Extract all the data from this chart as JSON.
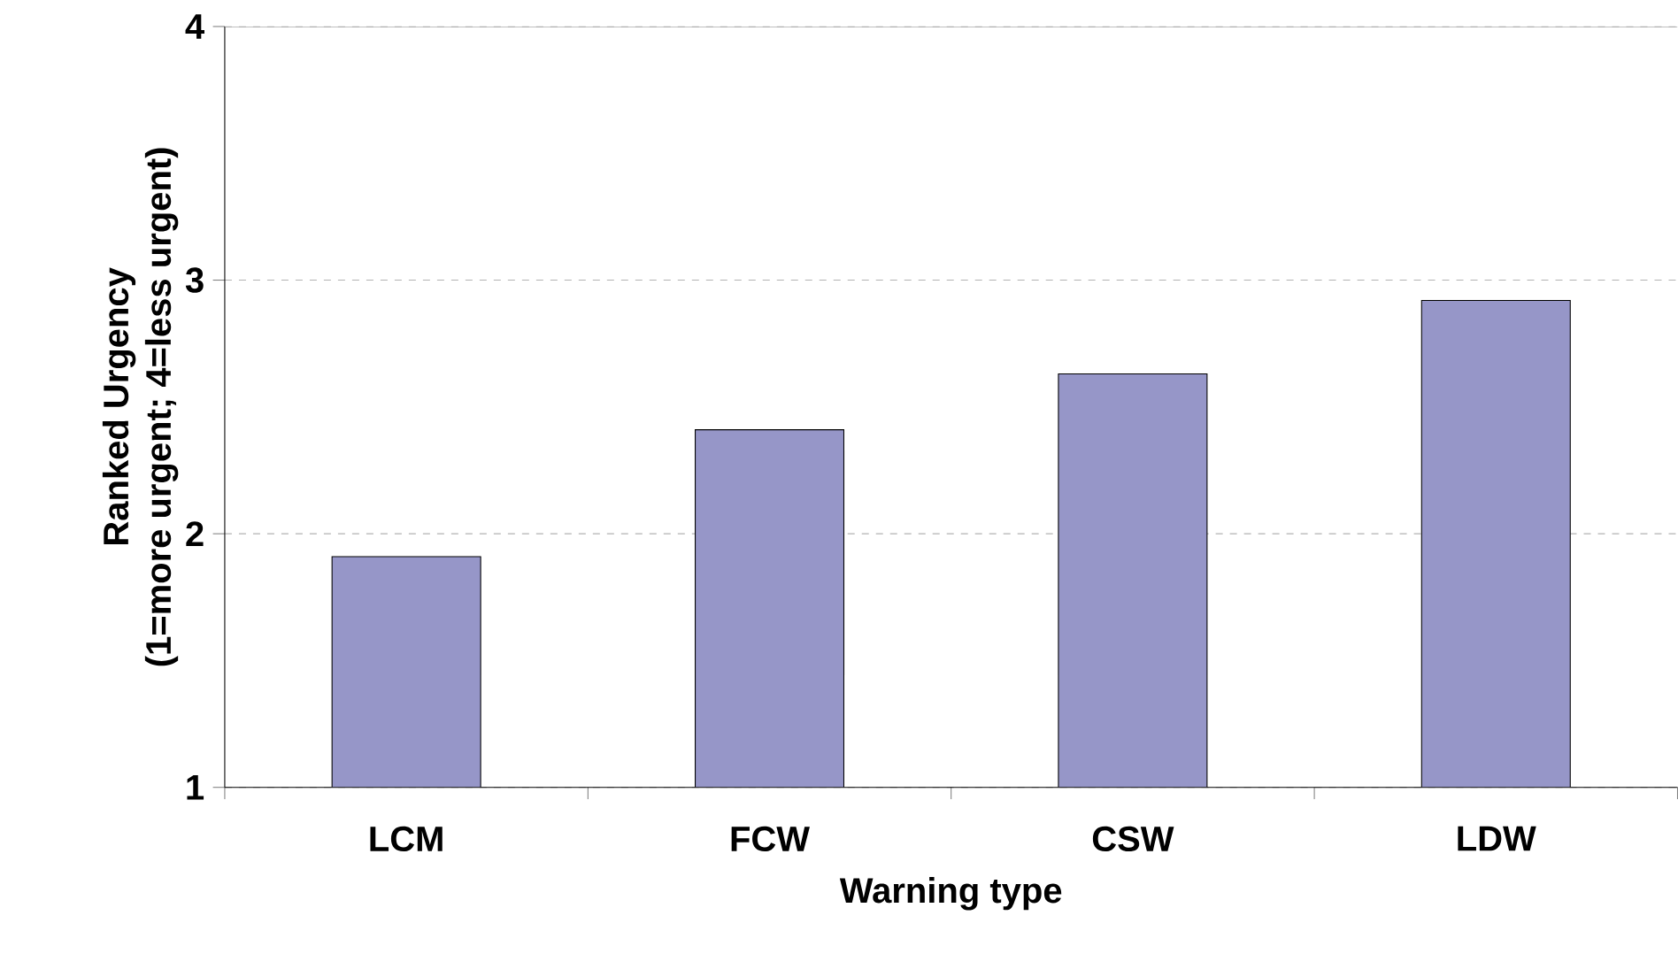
{
  "chart_data": {
    "type": "bar",
    "xlabel": "Warning type",
    "ylabel": "Ranked Urgency\n(1=more urgent; 4=less urgent)",
    "categories": [
      "LCM",
      "FCW",
      "CSW",
      "LDW"
    ],
    "values": [
      1.91,
      2.41,
      2.63,
      2.92
    ],
    "color": "#9696c8",
    "ylim": [
      1,
      4
    ],
    "yticks": [
      1,
      2,
      3,
      4
    ],
    "grid": "y"
  }
}
